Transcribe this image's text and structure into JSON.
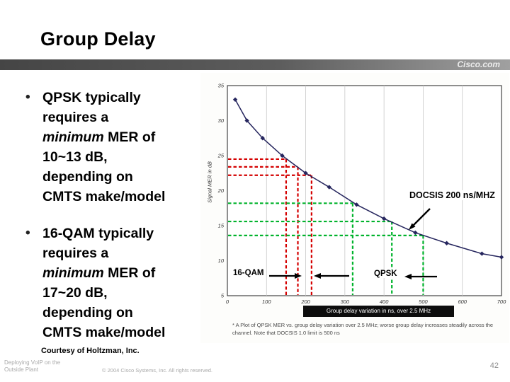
{
  "slide": {
    "title": "Group Delay",
    "brand": "Cisco.com",
    "bullet_char": "•",
    "bullets": [
      {
        "pre": "QPSK typically\nrequires a\n",
        "em": "minimum",
        "post": " MER of\n10~13 dB,\ndepending on\nCMTS make/model"
      },
      {
        "pre": "16-QAM typically\nrequires a\n",
        "em": "minimum",
        "post": " MER of\n17~20 dB,\ndepending on\nCMTS make/model"
      }
    ],
    "courtesy": "Courtesy of Holtzman, Inc.",
    "footer": {
      "product": "Deploying VoIP on the\nOutside Plant",
      "copyright": "© 2004 Cisco Systems, Inc. All rights reserved.",
      "page_number": "42"
    }
  },
  "annotations": {
    "docsis_label": "DOCSIS 200 ns/MHZ",
    "qam16_label": "16-QAM",
    "qpsk_label": "QPSK"
  },
  "chart_data": {
    "type": "line",
    "title": "Group delay variation in ns, over 2.5 MHz",
    "ylabel": "Signal MER in dB",
    "caption": "* A Plot of QPSK MER vs. group delay variation over 2.5 MHz; worse group delay increases steadily across the channel. Note that DOCSIS 1.0 limit is 500 ns",
    "xlim": [
      0,
      700
    ],
    "ylim": [
      5,
      35
    ],
    "x_ticks": [
      0,
      100,
      200,
      300,
      400,
      500,
      600,
      700
    ],
    "y_ticks": [
      5,
      10,
      15,
      20,
      25,
      30,
      35
    ],
    "grid": "vertical",
    "legend_position": "none",
    "series": [
      {
        "name": "QPSK MER vs. group delay variation",
        "color": "#26265e",
        "marker": "diamond",
        "x": [
          20,
          50,
          90,
          140,
          200,
          260,
          330,
          400,
          480,
          560,
          650,
          700
        ],
        "y": [
          33,
          30,
          27.5,
          25,
          22.5,
          20.5,
          18,
          16,
          14,
          12.5,
          11,
          10.5
        ]
      }
    ],
    "thresholds": {
      "qam16": {
        "label": "16-QAM",
        "color": "#d40000",
        "pairs": [
          {
            "x": 150,
            "y": 24.5
          },
          {
            "x": 180,
            "y": 23.4
          },
          {
            "x": 215,
            "y": 22.2
          }
        ]
      },
      "qpsk": {
        "label": "QPSK",
        "color": "#00b32c",
        "pairs": [
          {
            "x": 320,
            "y": 18.2
          },
          {
            "x": 420,
            "y": 15.6
          },
          {
            "x": 500,
            "y": 13.6
          }
        ]
      }
    },
    "docsis_annotation": {
      "label": "DOCSIS 200 ns/MHZ",
      "arrow_target": {
        "x": 480,
        "y": 14
      }
    }
  }
}
